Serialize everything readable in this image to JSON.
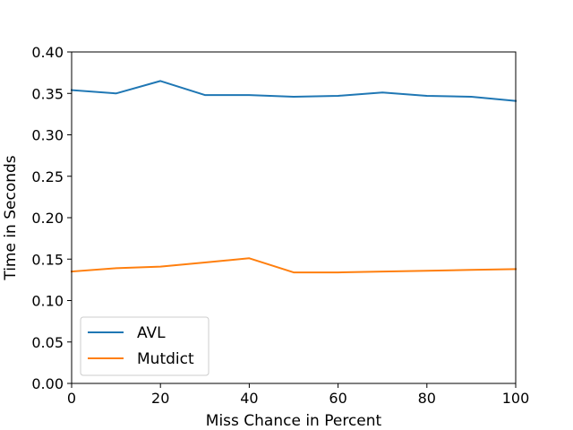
{
  "chart_data": {
    "type": "line",
    "title": "",
    "xlabel": "Miss Chance in Percent",
    "ylabel": "Time in Seconds",
    "xlim": [
      0,
      100
    ],
    "ylim": [
      0.0,
      0.4
    ],
    "x": [
      0,
      10,
      20,
      30,
      40,
      50,
      60,
      70,
      80,
      90,
      100
    ],
    "xticks": [
      "0",
      "20",
      "40",
      "60",
      "80",
      "100"
    ],
    "yticks": [
      "0.00",
      "0.05",
      "0.10",
      "0.15",
      "0.20",
      "0.25",
      "0.30",
      "0.35",
      "0.40"
    ],
    "grid": false,
    "legend_position": "lower-left",
    "series": [
      {
        "name": "AVL",
        "color": "#1f77b4",
        "values": [
          0.354,
          0.35,
          0.365,
          0.348,
          0.348,
          0.346,
          0.347,
          0.351,
          0.347,
          0.346,
          0.341
        ]
      },
      {
        "name": "Mutdict",
        "color": "#ff7f0e",
        "values": [
          0.135,
          0.139,
          0.141,
          0.146,
          0.151,
          0.134,
          0.134,
          0.135,
          0.136,
          0.137,
          0.138
        ]
      }
    ]
  }
}
